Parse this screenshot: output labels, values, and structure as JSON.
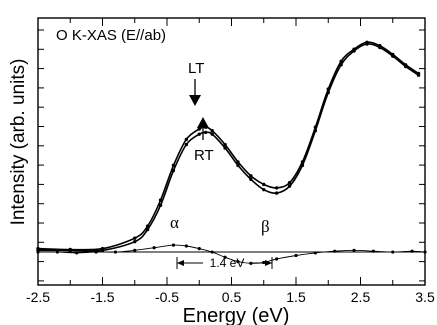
{
  "chart_data": {
    "type": "line",
    "title": "O K-XAS (E//ab)",
    "xlabel": "Energy (eV)",
    "ylabel": "Intensity (arb. units)",
    "xlim": [
      -2.5,
      3.5
    ],
    "ylim": [
      -1.9,
      13.5
    ],
    "x_ticks": [
      -2.5,
      -1.5,
      -0.5,
      0.5,
      1.5,
      2.5,
      3.5
    ],
    "x_tick_labels": [
      "-2.5",
      "-1.5",
      "-0.5",
      "0.5",
      "1.5",
      "2.5",
      "3.5"
    ],
    "grid": false,
    "series": [
      {
        "name": "LT",
        "x": [
          -2.5,
          -2.0,
          -1.5,
          -1.0,
          -0.8,
          -0.6,
          -0.4,
          -0.2,
          0.0,
          0.1,
          0.2,
          0.4,
          0.6,
          0.8,
          1.0,
          1.2,
          1.4,
          1.6,
          1.8,
          2.0,
          2.2,
          2.4,
          2.6,
          2.8,
          3.0,
          3.2,
          3.4
        ],
        "y": [
          0.2,
          0.15,
          0.2,
          0.8,
          1.5,
          3.0,
          5.0,
          6.5,
          7.1,
          7.2,
          7.0,
          6.2,
          5.2,
          4.4,
          3.9,
          3.7,
          4.0,
          5.2,
          7.2,
          9.4,
          11.0,
          11.7,
          12.1,
          11.9,
          11.4,
          10.8,
          10.3
        ]
      },
      {
        "name": "RT",
        "x": [
          -2.5,
          -2.0,
          -1.5,
          -1.0,
          -0.8,
          -0.6,
          -0.4,
          -0.2,
          0.0,
          0.1,
          0.2,
          0.4,
          0.6,
          0.8,
          1.0,
          1.2,
          1.4,
          1.6,
          1.8,
          2.0,
          2.2,
          2.4,
          2.6,
          2.8,
          3.0,
          3.2,
          3.4
        ],
        "y": [
          0.1,
          0.1,
          0.1,
          0.6,
          1.3,
          2.7,
          4.7,
          6.2,
          6.8,
          6.9,
          6.8,
          6.0,
          5.0,
          4.2,
          3.6,
          3.4,
          3.8,
          5.0,
          7.0,
          9.2,
          10.8,
          11.6,
          12.0,
          11.8,
          11.3,
          10.7,
          10.2
        ]
      },
      {
        "name": "difference",
        "x": [
          -2.5,
          -2.2,
          -1.9,
          -1.6,
          -1.3,
          -1.0,
          -0.7,
          -0.4,
          -0.2,
          0.0,
          0.2,
          0.4,
          0.6,
          0.8,
          1.0,
          1.2,
          1.5,
          1.8,
          2.1,
          2.4,
          2.7,
          3.0,
          3.3,
          3.5
        ],
        "y": [
          0.0,
          0.0,
          -0.05,
          0.0,
          0.0,
          0.1,
          0.25,
          0.4,
          0.35,
          0.2,
          0.0,
          -0.3,
          -0.55,
          -0.65,
          -0.6,
          -0.4,
          -0.2,
          -0.05,
          0.05,
          0.1,
          0.05,
          0.0,
          0.05,
          0.0
        ]
      }
    ],
    "annotations": {
      "alpha": "α",
      "beta": "β",
      "lt": "LT",
      "rt": "RT",
      "gap": "1.4 eV"
    }
  }
}
